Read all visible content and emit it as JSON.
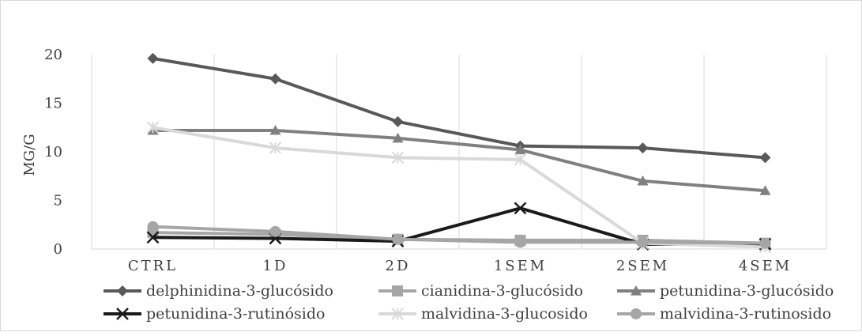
{
  "chart_data": {
    "type": "line",
    "title": "",
    "xlabel": "",
    "ylabel": "MG/G",
    "ylim": [
      0,
      20
    ],
    "yticks": [
      0,
      5,
      10,
      15,
      20
    ],
    "grid": "vertical",
    "legend_position": "bottom",
    "categories": [
      "CTRL",
      "1D",
      "2D",
      "1SEM",
      "2SEM",
      "4SEM"
    ],
    "series": [
      {
        "name": "delphinidina-3-glucósido",
        "values": [
          19.6,
          17.5,
          13.1,
          10.6,
          10.4,
          9.4
        ],
        "color": "#595959",
        "marker": "diamond"
      },
      {
        "name": "cianidina-3-glucósido",
        "values": [
          1.7,
          1.5,
          1.0,
          0.9,
          0.9,
          0.6
        ],
        "color": "#a6a6a6",
        "marker": "square"
      },
      {
        "name": "petunidina-3-glucósido",
        "values": [
          12.2,
          12.2,
          11.4,
          10.2,
          7.0,
          6.0
        ],
        "color": "#808080",
        "marker": "triangle"
      },
      {
        "name": "petunidina-3-rutinósido",
        "values": [
          1.2,
          1.1,
          0.8,
          4.2,
          0.5,
          0.5
        ],
        "color": "#1a1a1a",
        "marker": "x"
      },
      {
        "name": "malvidina-3-glucosido",
        "values": [
          12.5,
          10.4,
          9.4,
          9.2,
          0.6,
          0.2
        ],
        "color": "#d9d9d9",
        "marker": "star"
      },
      {
        "name": "malvidina-3-rutinosido",
        "values": [
          2.3,
          1.8,
          1.0,
          0.7,
          0.7,
          0.6
        ],
        "color": "#a6a6a6",
        "marker": "circle"
      }
    ]
  }
}
